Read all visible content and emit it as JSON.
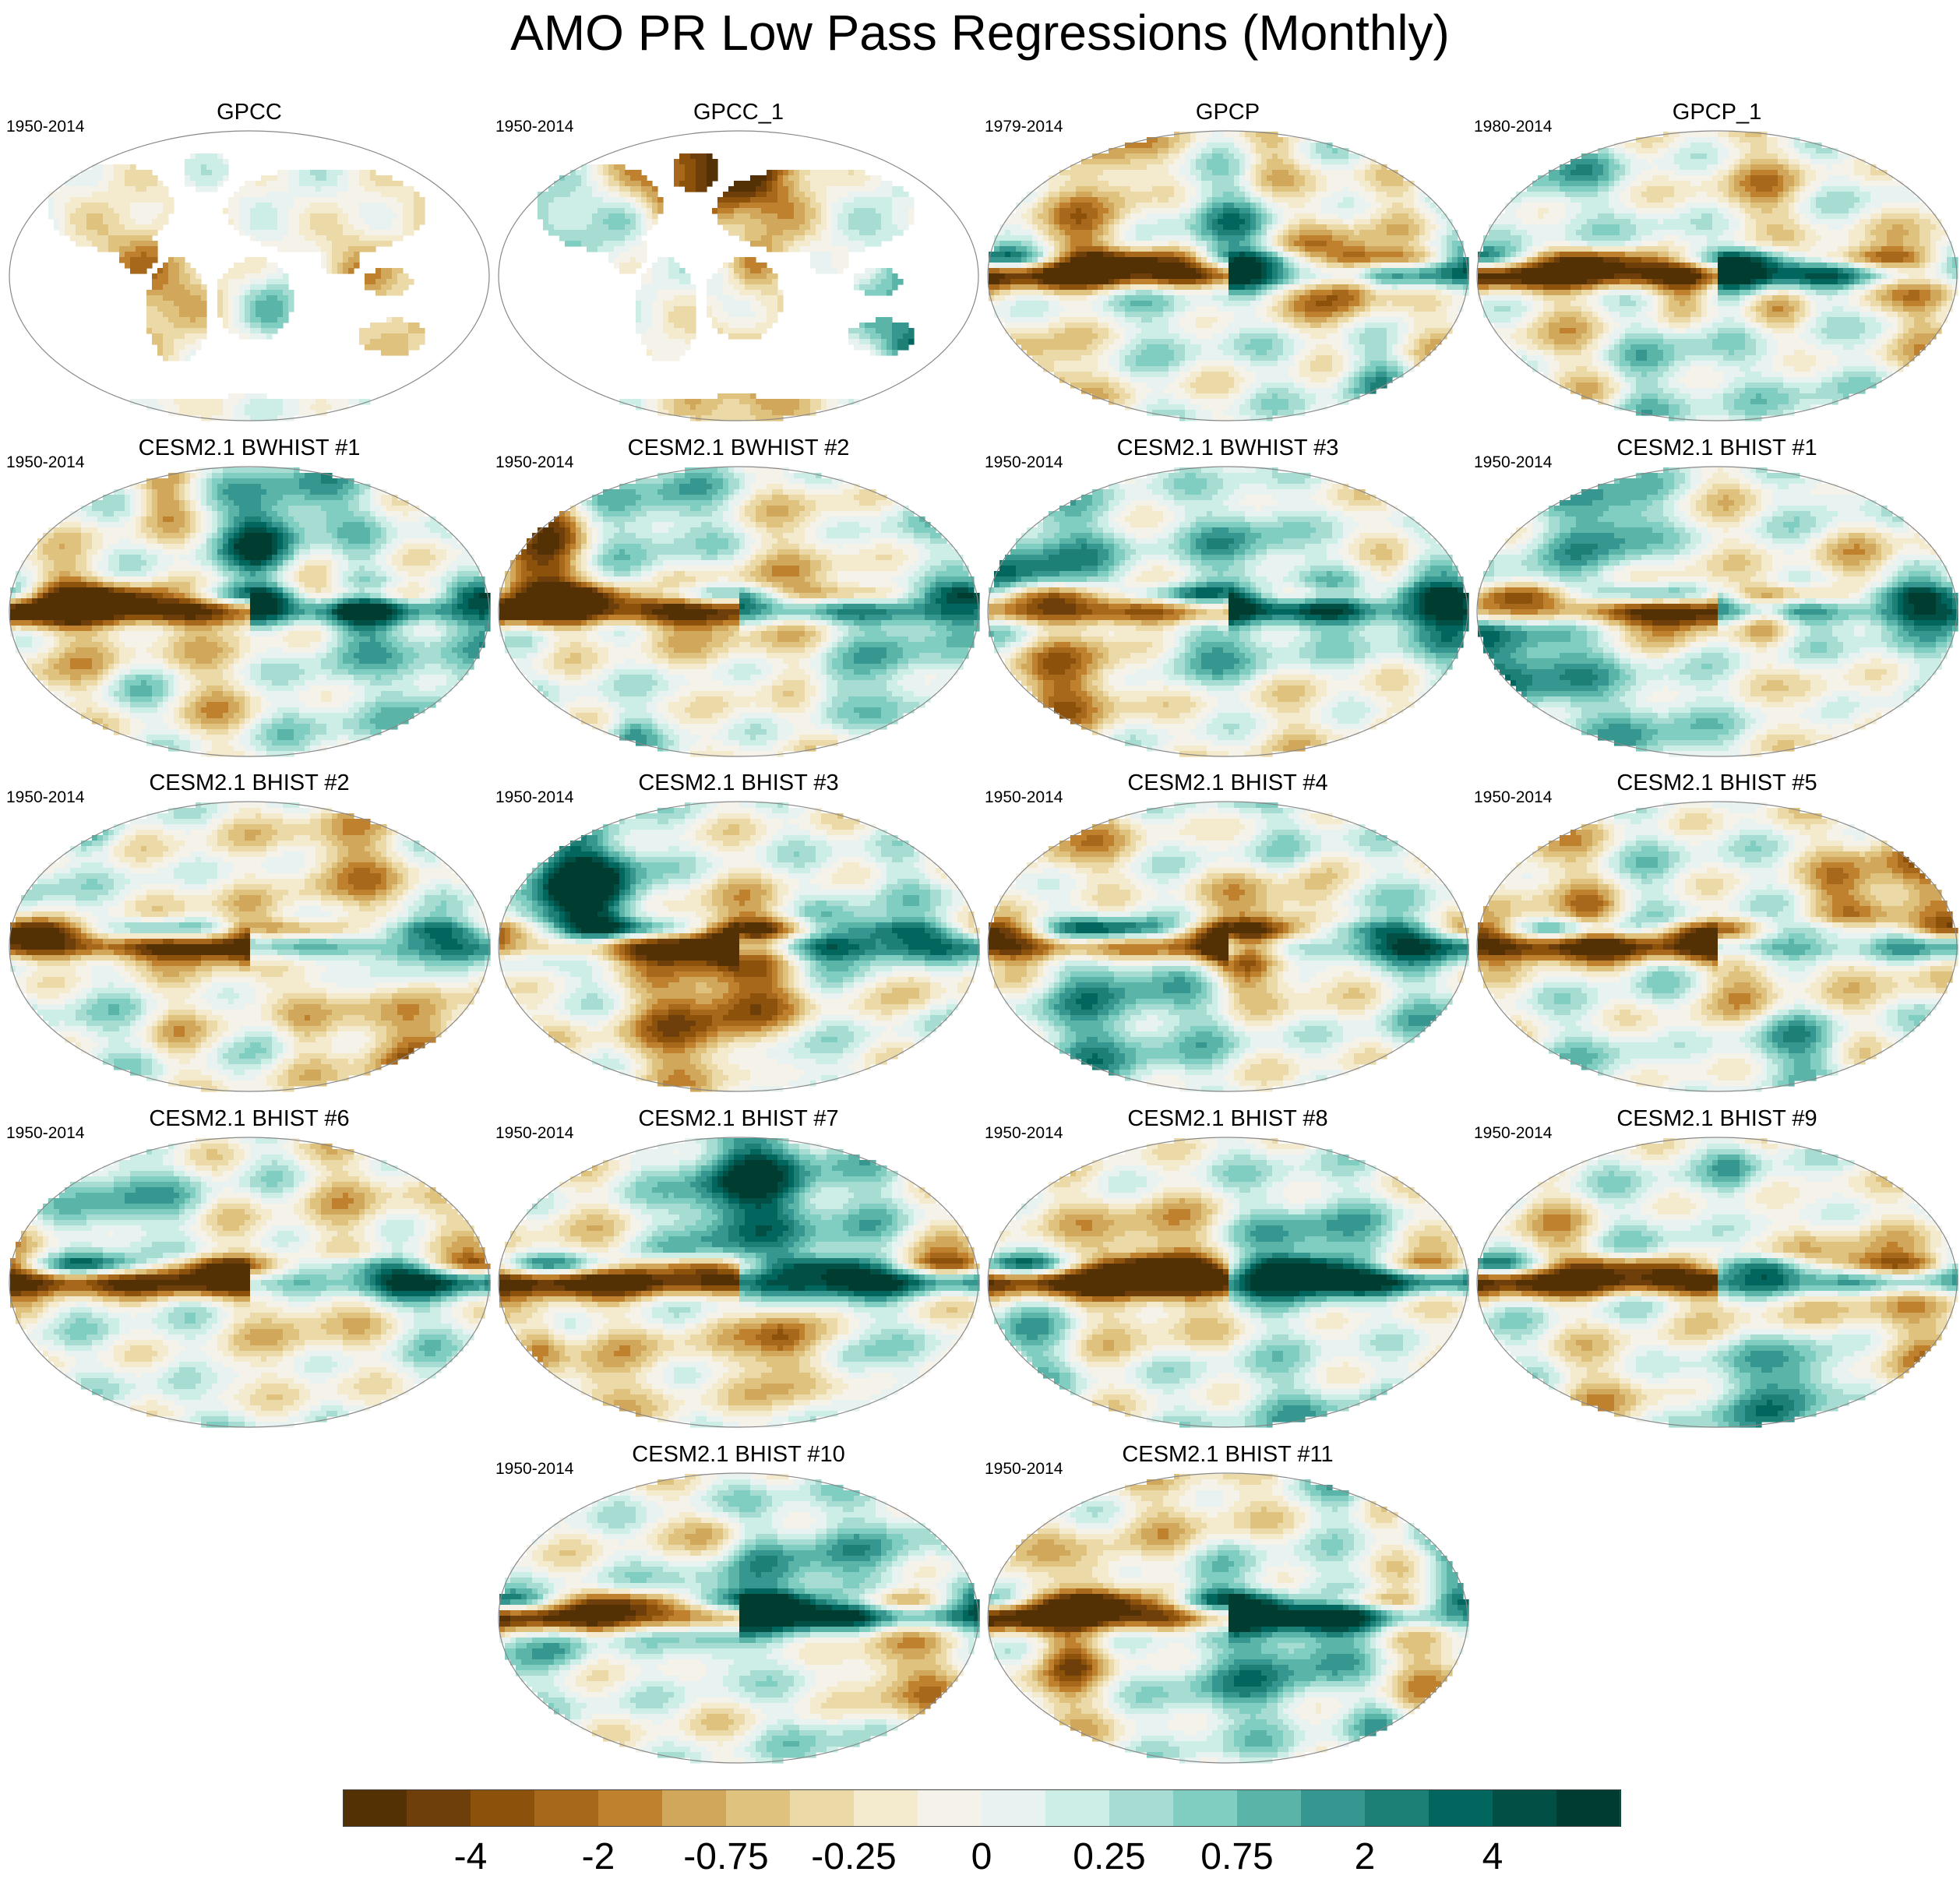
{
  "title": "AMO PR Low Pass Regressions (Monthly)",
  "panels": [
    {
      "title": "GPCC",
      "period": "1950-2014",
      "type": "land"
    },
    {
      "title": "GPCC_1",
      "period": "1950-2014",
      "type": "land"
    },
    {
      "title": "GPCP",
      "period": "1979-2014",
      "type": "global"
    },
    {
      "title": "GPCP_1",
      "period": "1980-2014",
      "type": "global"
    },
    {
      "title": "CESM2.1 BWHIST #1",
      "period": "1950-2014",
      "type": "global"
    },
    {
      "title": "CESM2.1 BWHIST #2",
      "period": "1950-2014",
      "type": "global"
    },
    {
      "title": "CESM2.1 BWHIST #3",
      "period": "1950-2014",
      "type": "global"
    },
    {
      "title": "CESM2.1 BHIST #1",
      "period": "1950-2014",
      "type": "global"
    },
    {
      "title": "CESM2.1 BHIST #2",
      "period": "1950-2014",
      "type": "global"
    },
    {
      "title": "CESM2.1 BHIST #3",
      "period": "1950-2014",
      "type": "global"
    },
    {
      "title": "CESM2.1 BHIST #4",
      "period": "1950-2014",
      "type": "global"
    },
    {
      "title": "CESM2.1 BHIST #5",
      "period": "1950-2014",
      "type": "global"
    },
    {
      "title": "CESM2.1 BHIST #6",
      "period": "1950-2014",
      "type": "global"
    },
    {
      "title": "CESM2.1 BHIST #7",
      "period": "1950-2014",
      "type": "global"
    },
    {
      "title": "CESM2.1 BHIST #8",
      "period": "1950-2014",
      "type": "global"
    },
    {
      "title": "CESM2.1 BHIST #9",
      "period": "1950-2014",
      "type": "global"
    },
    {
      "title": "CESM2.1 BHIST #10",
      "period": "1950-2014",
      "type": "global"
    },
    {
      "title": "CESM2.1 BHIST #11",
      "period": "1950-2014",
      "type": "global"
    }
  ],
  "colorbar": {
    "colors": [
      "#543005",
      "#6f3f0b",
      "#8c510a",
      "#a8681c",
      "#bf812d",
      "#d1a75c",
      "#dfc27d",
      "#ecd9a8",
      "#f4ebcf",
      "#f5f2ea",
      "#e8f3f1",
      "#cceee7",
      "#a6dcd1",
      "#80cdc1",
      "#5ab4a8",
      "#35978f",
      "#1c8077",
      "#01665e",
      "#024f45",
      "#003c30"
    ],
    "tick_labels": [
      "-4",
      "-2",
      "-0.75",
      "-0.25",
      "0",
      "0.25",
      "0.75",
      "2",
      "4"
    ]
  }
}
